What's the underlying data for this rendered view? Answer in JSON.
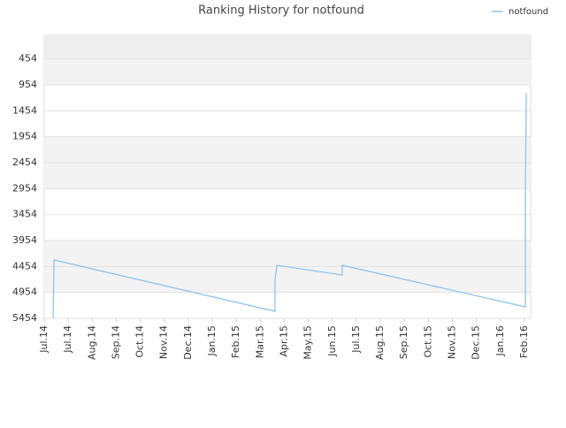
{
  "chart_data": {
    "type": "line",
    "title": "Ranking History for notfound",
    "x": [
      0.37,
      0.41,
      9.61,
      9.61,
      9.69,
      12.41,
      12.41,
      20.04,
      20.04,
      20.08
    ],
    "series": [
      {
        "name": "notfound",
        "color": "#8ec4ee",
        "values": [
          5454,
          4329,
          5318,
          4738,
          4431,
          4619,
          4431,
          5233,
          3068,
          1108
        ]
      }
    ],
    "ylim": [
      5454,
      0
    ],
    "yticks": [
      454,
      954,
      1454,
      1954,
      2454,
      2954,
      3454,
      3954,
      4454,
      4954,
      5454
    ],
    "xlim": [
      0,
      20.26
    ],
    "xticks": [
      {
        "value": 0,
        "label": "Jul.14"
      },
      {
        "value": 1,
        "label": "Jul.14"
      },
      {
        "value": 2,
        "label": "Aug.14"
      },
      {
        "value": 3,
        "label": "Sep.14"
      },
      {
        "value": 4,
        "label": "Oct.14"
      },
      {
        "value": 5,
        "label": "Nov.14"
      },
      {
        "value": 6,
        "label": "Dec.14"
      },
      {
        "value": 7,
        "label": "Jan.15"
      },
      {
        "value": 8,
        "label": "Feb.15"
      },
      {
        "value": 9,
        "label": "Mar.15"
      },
      {
        "value": 10,
        "label": "Apr.15"
      },
      {
        "value": 11,
        "label": "May.15"
      },
      {
        "value": 12,
        "label": "Jun.15"
      },
      {
        "value": 13,
        "label": "Jul.15"
      },
      {
        "value": 14,
        "label": "Aug.15"
      },
      {
        "value": 15,
        "label": "Sep.15"
      },
      {
        "value": 16,
        "label": "Oct.15"
      },
      {
        "value": 17,
        "label": "Nov.15"
      },
      {
        "value": 18,
        "label": "Dec.15"
      },
      {
        "value": 19,
        "label": "Jan.16"
      },
      {
        "value": 20,
        "label": "Feb.16"
      }
    ],
    "grid": true,
    "legend": "top-right"
  }
}
